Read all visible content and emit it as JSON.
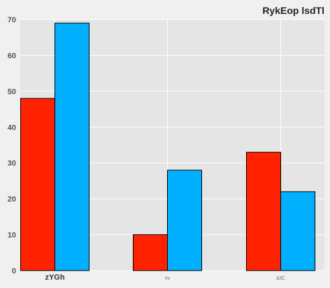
{
  "chart_data": {
    "type": "bar",
    "title": "RykEop lsdTl",
    "xlabel": "",
    "ylabel": "",
    "categories": [
      "zYGh",
      "vv",
      "dJC"
    ],
    "series": [
      {
        "values": [
          48,
          10,
          33
        ],
        "color": "#ff2200"
      },
      {
        "values": [
          69,
          28,
          22
        ],
        "color": "#00b0ff"
      }
    ],
    "ylim": [
      0,
      70
    ],
    "yticks": [
      0,
      10,
      20,
      30,
      40,
      50,
      60,
      70
    ],
    "grid": true,
    "background": "#e5e5e5"
  }
}
